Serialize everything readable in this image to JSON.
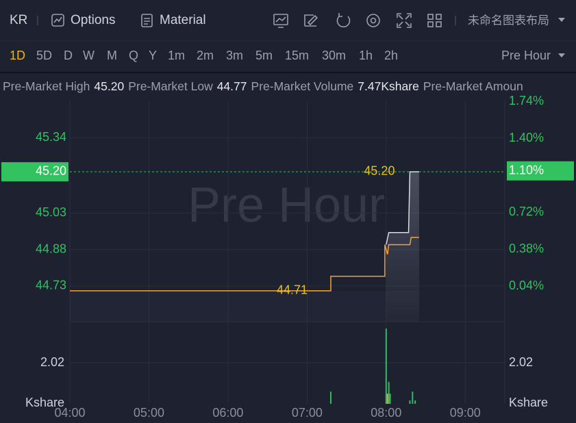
{
  "toolbar": {
    "symbol": "KR",
    "options": "Options",
    "material": "Material",
    "layout_name": "未命名图表布局"
  },
  "intervals": {
    "items": [
      "1D",
      "5D",
      "D",
      "W",
      "M",
      "Q",
      "Y",
      "1m",
      "2m",
      "3m",
      "5m",
      "15m",
      "30m",
      "1h",
      "2h"
    ],
    "selected_index": 0,
    "selected_color": "#f0b90b"
  },
  "session_menu": "Pre Hour",
  "stats": [
    {
      "label": "Pre-Market High",
      "value": "45.20"
    },
    {
      "label": "Pre-Market Low",
      "value": "44.77"
    },
    {
      "label": "Pre-Market Volume",
      "value": "7.47Kshare"
    },
    {
      "label": "Pre-Market Amoun"
    }
  ],
  "chart_data": [
    {
      "type": "line",
      "watermark": "Pre Hour",
      "axis_color": "#32c25f",
      "xlim": [
        240,
        570
      ],
      "xticks": [
        {
          "value": 240,
          "label": "04:00"
        },
        {
          "value": 300,
          "label": "05:00"
        },
        {
          "value": 360,
          "label": "06:00"
        },
        {
          "value": 420,
          "label": "07:00"
        },
        {
          "value": 480,
          "label": "08:00"
        },
        {
          "value": 540,
          "label": "09:00"
        }
      ],
      "ylim": [
        44.583,
        45.49
      ],
      "yticks": [
        44.73,
        44.88,
        45.03,
        45.34
      ],
      "y2lim": [
        -0.287,
        1.74
      ],
      "y2ticks": [
        {
          "value": 0.04,
          "label": "0.04%"
        },
        {
          "value": 0.38,
          "label": "0.38%"
        },
        {
          "value": 0.72,
          "label": "0.72%"
        },
        {
          "value": 1.4,
          "label": "1.40%"
        },
        {
          "value": 1.74,
          "label": "1.74%"
        }
      ],
      "last_price": {
        "value": 45.2,
        "label": "45.20"
      },
      "last_change": {
        "value": 1.1,
        "label": "1.10%"
      },
      "series": [
        {
          "color": "#f5a23c",
          "x": [
            240,
            438,
            438,
            479,
            479,
            481,
            482,
            498,
            499,
            505
          ],
          "values": [
            44.71,
            44.71,
            44.77,
            44.77,
            44.9,
            44.86,
            44.9,
            44.9,
            44.93,
            44.93
          ]
        },
        {
          "color": "#d9dce3",
          "x": [
            480,
            482,
            497,
            498,
            505
          ],
          "values": [
            44.9,
            44.95,
            44.95,
            45.2,
            45.2
          ]
        }
      ],
      "annotations": [
        {
          "x": 438,
          "value": 44.71,
          "label": "44.71",
          "color": "#e8c21a"
        },
        {
          "x": 498,
          "value": 45.2,
          "label": "45.20",
          "color": "#e8c21a"
        }
      ]
    },
    {
      "type": "bar",
      "unit": "Kshare",
      "x": [
        438,
        480,
        481,
        482,
        483,
        498,
        500,
        502
      ],
      "values": [
        0.6,
        3.7,
        0.5,
        1.08,
        0.5,
        0.17,
        0.6,
        0.17
      ],
      "colors": [
        "#2ebd5f",
        "#2ebd5f",
        "#f5a23c",
        "#2ebd5f",
        "#2ebd5f",
        "#2ebd5f",
        "#2ebd5f",
        "#2ebd5f"
      ],
      "ylim": [
        0,
        4.04
      ],
      "yticks": [
        2.02
      ]
    }
  ]
}
